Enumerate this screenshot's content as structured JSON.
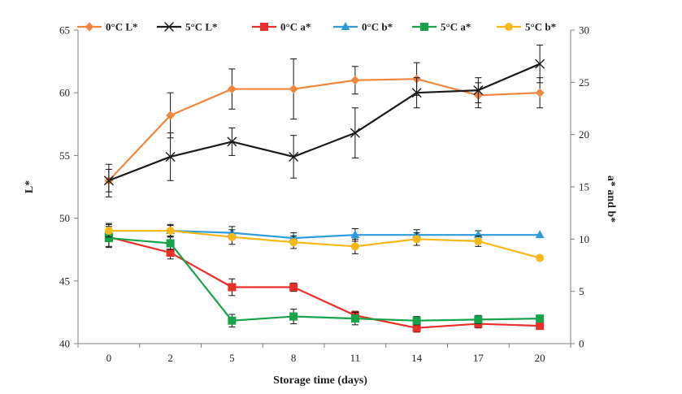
{
  "chart_data": {
    "type": "line",
    "title": "",
    "xlabel": "Storage time (days)",
    "ylabel_left": "L*",
    "ylabel_right": "a* and b*",
    "x": [
      0,
      2,
      5,
      8,
      11,
      14,
      17,
      20
    ],
    "x_tick_labels": [
      "0",
      "2",
      "5",
      "8",
      "11",
      "14",
      "17",
      "20"
    ],
    "ylim_left": [
      40,
      65
    ],
    "yticks_left": [
      "40",
      "45",
      "50",
      "55",
      "60",
      "65"
    ],
    "ylim_right": [
      0,
      30
    ],
    "yticks_right": [
      "0",
      "5",
      "10",
      "15",
      "20",
      "25",
      "30"
    ],
    "legend_position": "top",
    "grid": false,
    "series": [
      {
        "name": "0°C L*",
        "axis": "left",
        "color": "#F0873F",
        "marker": "diamond",
        "values": [
          53.0,
          58.2,
          60.3,
          60.3,
          61.0,
          61.1,
          59.8,
          60.0
        ],
        "errors": [
          0.9,
          1.8,
          1.6,
          2.4,
          1.1,
          1.3,
          1.0,
          1.2
        ]
      },
      {
        "name": "5°C L*",
        "axis": "left",
        "color": "#1A1A1A",
        "marker": "x",
        "values": [
          53.0,
          54.9,
          56.1,
          54.9,
          56.8,
          60.0,
          60.2,
          62.3
        ],
        "errors": [
          1.3,
          1.9,
          1.1,
          1.7,
          2.0,
          1.2,
          1.0,
          1.5
        ]
      },
      {
        "name": "0°C a*",
        "axis": "right",
        "color": "#E8302A",
        "marker": "square",
        "values": [
          10.2,
          8.7,
          5.4,
          5.4,
          2.7,
          1.5,
          1.9,
          1.7
        ],
        "errors": [
          1.0,
          0.6,
          0.8,
          0.4,
          0.4,
          0.4,
          0.4,
          0.3
        ]
      },
      {
        "name": "0°C b*",
        "axis": "right",
        "color": "#2E9BDA",
        "marker": "triangle",
        "values": [
          10.8,
          10.8,
          10.6,
          10.1,
          10.4,
          10.4,
          10.4,
          10.4
        ],
        "errors": [
          0.7,
          0.5,
          0.6,
          0.5,
          0.6,
          0.5,
          0.4,
          0.0
        ]
      },
      {
        "name": "5°C a*",
        "axis": "right",
        "color": "#17A34A",
        "marker": "square",
        "values": [
          10.1,
          9.6,
          2.2,
          2.6,
          2.4,
          2.2,
          2.3,
          2.4
        ],
        "errors": [
          0.8,
          0.6,
          0.6,
          0.7,
          0.6,
          0.4,
          0.4,
          0.3
        ]
      },
      {
        "name": "5°C b*",
        "axis": "right",
        "color": "#F7B818",
        "marker": "circle",
        "values": [
          10.8,
          10.8,
          10.2,
          9.7,
          9.3,
          10.0,
          9.8,
          8.2
        ],
        "errors": [
          0.6,
          0.6,
          0.7,
          0.6,
          0.7,
          0.6,
          0.5,
          0.0
        ]
      }
    ]
  }
}
